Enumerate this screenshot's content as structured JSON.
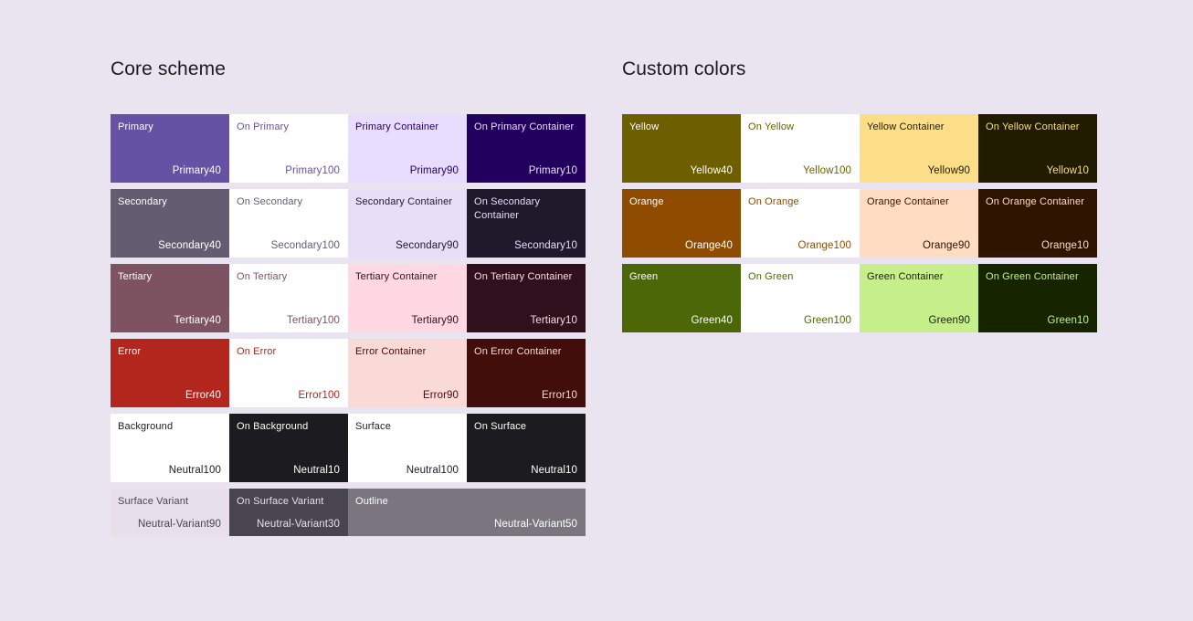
{
  "page": {
    "background": "#E9E4F0"
  },
  "sections": [
    {
      "title": "Core scheme",
      "rows": [
        {
          "cells": [
            {
              "label": "Primary",
              "value": "Primary40",
              "bg": "#6552A4",
              "fg": "#FFFFFF"
            },
            {
              "label": "On Primary",
              "value": "Primary100",
              "bg": "#FFFFFF",
              "fg": "#6552A4"
            },
            {
              "label": "Primary Container",
              "value": "Primary90",
              "bg": "#E9DDFF",
              "fg": "#21005D"
            },
            {
              "label": "On Primary Container",
              "value": "Primary10",
              "bg": "#22005D",
              "fg": "#E9DDFF"
            }
          ]
        },
        {
          "cells": [
            {
              "label": "Secondary",
              "value": "Secondary40",
              "bg": "#635D71",
              "fg": "#FFFFFF"
            },
            {
              "label": "On Secondary",
              "value": "Secondary100",
              "bg": "#FFFFFF",
              "fg": "#635D71"
            },
            {
              "label": "Secondary Container",
              "value": "Secondary90",
              "bg": "#E8DEF8",
              "fg": "#1E192B"
            },
            {
              "label": "On Secondary Container",
              "value": "Secondary10",
              "bg": "#1E192B",
              "fg": "#E8DEF8"
            }
          ]
        },
        {
          "cells": [
            {
              "label": "Tertiary",
              "value": "Tertiary40",
              "bg": "#7D5361",
              "fg": "#FFFFFF"
            },
            {
              "label": "On Tertiary",
              "value": "Tertiary100",
              "bg": "#FFFFFF",
              "fg": "#7D5361"
            },
            {
              "label": "Tertiary Container",
              "value": "Tertiary90",
              "bg": "#FFD8E3",
              "fg": "#31101D"
            },
            {
              "label": "On Tertiary Container",
              "value": "Tertiary10",
              "bg": "#31101D",
              "fg": "#FFD8E3"
            }
          ]
        },
        {
          "cells": [
            {
              "label": "Error",
              "value": "Error40",
              "bg": "#B3261E",
              "fg": "#FFFFFF"
            },
            {
              "label": "On Error",
              "value": "Error100",
              "bg": "#FFFFFF",
              "fg": "#B3261E"
            },
            {
              "label": "Error Container",
              "value": "Error90",
              "bg": "#F9DAD6",
              "fg": "#410E0B"
            },
            {
              "label": "On Error Container",
              "value": "Error10",
              "bg": "#410E0B",
              "fg": "#F9DAD6"
            }
          ]
        },
        {
          "cells": [
            {
              "label": "Background",
              "value": "Neutral100",
              "bg": "#FFFFFF",
              "fg": "#1C1B1F"
            },
            {
              "label": "On Background",
              "value": "Neutral10",
              "bg": "#1C1B1F",
              "fg": "#FFFFFF"
            },
            {
              "label": "Surface",
              "value": "Neutral100",
              "bg": "#FFFFFF",
              "fg": "#1C1B1F"
            },
            {
              "label": "On Surface",
              "value": "Neutral10",
              "bg": "#1C1B1F",
              "fg": "#FFFFFF"
            }
          ]
        },
        {
          "cells": [
            {
              "label": "Surface Variant",
              "value": "Neutral-Variant90",
              "bg": "#E7E0EB",
              "fg": "#49454E"
            },
            {
              "label": "On Surface Variant",
              "value": "Neutral-Variant30",
              "bg": "#49454E",
              "fg": "#E7E0EB"
            },
            {
              "label": "Outline",
              "value": "Neutral-Variant50",
              "bg": "#7A757F",
              "fg": "#FFFFFF",
              "span": 2
            }
          ]
        }
      ]
    },
    {
      "title": "Custom colors",
      "rows": [
        {
          "cells": [
            {
              "label": "Yellow",
              "value": "Yellow40",
              "bg": "#6D5E00",
              "fg": "#FFFFFF"
            },
            {
              "label": "On Yellow",
              "value": "Yellow100",
              "bg": "#FFFFFF",
              "fg": "#6D5E00"
            },
            {
              "label": "Yellow Container",
              "value": "Yellow90",
              "bg": "#FBDE87",
              "fg": "#211B00"
            },
            {
              "label": "On Yellow Container",
              "value": "Yellow10",
              "bg": "#211B00",
              "fg": "#FBDE87"
            }
          ]
        },
        {
          "cells": [
            {
              "label": "Orange",
              "value": "Orange40",
              "bg": "#8F4C00",
              "fg": "#FFFFFF"
            },
            {
              "label": "On Orange",
              "value": "Orange100",
              "bg": "#FFFFFF",
              "fg": "#8F4C00"
            },
            {
              "label": "Orange Container",
              "value": "Orange90",
              "bg": "#FFDCC2",
              "fg": "#2F1400"
            },
            {
              "label": "On Orange Container",
              "value": "Orange10",
              "bg": "#2F1400",
              "fg": "#FFDCC2"
            }
          ]
        },
        {
          "cells": [
            {
              "label": "Green",
              "value": "Green40",
              "bg": "#4C6708",
              "fg": "#FFFFFF"
            },
            {
              "label": "On Green",
              "value": "Green100",
              "bg": "#FFFFFF",
              "fg": "#4C6708"
            },
            {
              "label": "Green Container",
              "value": "Green90",
              "bg": "#C6EE8B",
              "fg": "#172400"
            },
            {
              "label": "On Green Container",
              "value": "Green10",
              "bg": "#172400",
              "fg": "#C6EE8B"
            }
          ]
        }
      ]
    }
  ]
}
